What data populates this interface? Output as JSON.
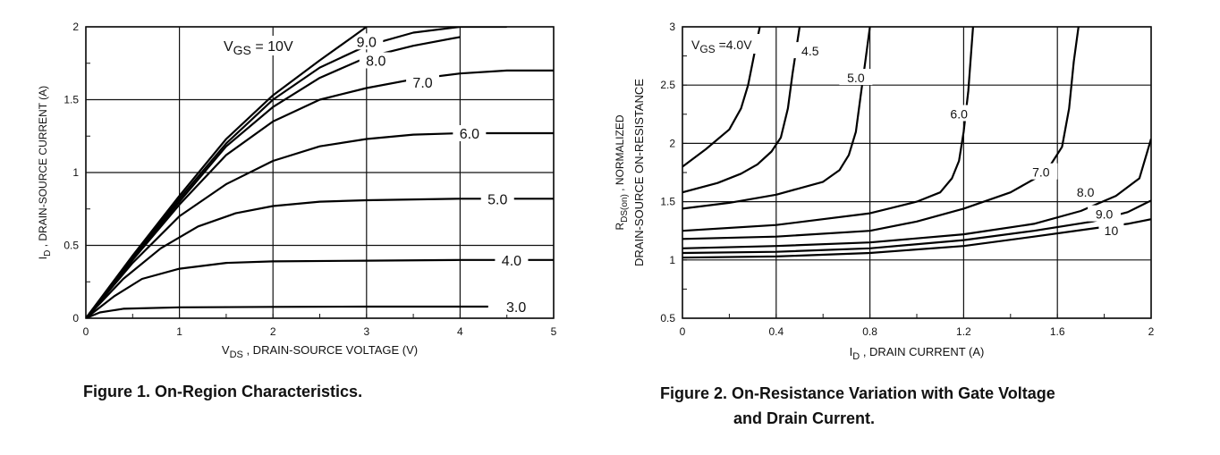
{
  "figures": [
    {
      "caption": "Figure 1. On-Region Characteristics.",
      "chart_data": {
        "type": "line",
        "title": "",
        "xlabel_main": "V",
        "xlabel_sub": "DS",
        "xlabel_rest": " , DRAIN-SOURCE VOLTAGE (V)",
        "ylabel_main": "I",
        "ylabel_sub": "D",
        "ylabel_rest": " , DRAIN-SOURCE CURRENT (A)",
        "xlim": [
          0,
          5
        ],
        "ylim": [
          0,
          2
        ],
        "x_ticks": [
          0,
          1,
          2,
          3,
          4,
          5
        ],
        "y_ticks": [
          0,
          0.5,
          1,
          1.5,
          2
        ],
        "x_tick_labels": [
          "0",
          "1",
          "2",
          "3",
          "4",
          "5"
        ],
        "y_tick_labels": [
          "0",
          "0.5",
          "1",
          "1.5",
          "2"
        ],
        "grid": true,
        "legend_header": {
          "main": "V",
          "sub": "GS",
          "rest": " = 10V"
        },
        "series": [
          {
            "label": "3.0",
            "points": [
              [
                0,
                0
              ],
              [
                0.15,
                0.04
              ],
              [
                0.4,
                0.065
              ],
              [
                1,
                0.075
              ],
              [
                2,
                0.078
              ],
              [
                3,
                0.08
              ],
              [
                4.3,
                0.08
              ]
            ],
            "label_pos": [
              4.6,
              0.08
            ]
          },
          {
            "label": "4.0",
            "points": [
              [
                0,
                0
              ],
              [
                0.3,
                0.15
              ],
              [
                0.6,
                0.27
              ],
              [
                1,
                0.34
              ],
              [
                1.5,
                0.38
              ],
              [
                2,
                0.39
              ],
              [
                3,
                0.395
              ],
              [
                4,
                0.4
              ],
              [
                5,
                0.4
              ]
            ],
            "label_pos": [
              4.55,
              0.4
            ]
          },
          {
            "label": "5.0",
            "points": [
              [
                0,
                0
              ],
              [
                0.4,
                0.27
              ],
              [
                0.8,
                0.48
              ],
              [
                1.2,
                0.63
              ],
              [
                1.6,
                0.72
              ],
              [
                2,
                0.77
              ],
              [
                2.5,
                0.8
              ],
              [
                3,
                0.81
              ],
              [
                4,
                0.82
              ],
              [
                5,
                0.82
              ]
            ],
            "label_pos": [
              4.4,
              0.82
            ]
          },
          {
            "label": "6.0",
            "points": [
              [
                0,
                0
              ],
              [
                0.5,
                0.38
              ],
              [
                1,
                0.7
              ],
              [
                1.5,
                0.92
              ],
              [
                2,
                1.08
              ],
              [
                2.5,
                1.18
              ],
              [
                3,
                1.23
              ],
              [
                3.5,
                1.26
              ],
              [
                4,
                1.27
              ],
              [
                5,
                1.27
              ]
            ],
            "label_pos": [
              4.1,
              1.27
            ]
          },
          {
            "label": "7.0",
            "points": [
              [
                0,
                0
              ],
              [
                0.5,
                0.4
              ],
              [
                1,
                0.78
              ],
              [
                1.5,
                1.12
              ],
              [
                2,
                1.35
              ],
              [
                2.5,
                1.5
              ],
              [
                3,
                1.58
              ],
              [
                3.5,
                1.64
              ],
              [
                4,
                1.68
              ],
              [
                4.5,
                1.7
              ],
              [
                5,
                1.7
              ]
            ],
            "label_pos": [
              3.6,
              1.62
            ]
          },
          {
            "label": "8.0",
            "points": [
              [
                0,
                0
              ],
              [
                0.5,
                0.41
              ],
              [
                1,
                0.8
              ],
              [
                1.5,
                1.18
              ],
              [
                2,
                1.45
              ],
              [
                2.5,
                1.65
              ],
              [
                3,
                1.79
              ],
              [
                3.5,
                1.87
              ],
              [
                4,
                1.93
              ]
            ],
            "label_pos": [
              3.1,
              1.77
            ]
          },
          {
            "label": "9.0",
            "points": [
              [
                0,
                0
              ],
              [
                0.5,
                0.42
              ],
              [
                1,
                0.82
              ],
              [
                1.5,
                1.2
              ],
              [
                2,
                1.5
              ],
              [
                2.5,
                1.72
              ],
              [
                3,
                1.87
              ],
              [
                3.5,
                1.96
              ],
              [
                4,
                2.0
              ],
              [
                4.5,
                2.0
              ]
            ],
            "label_pos": [
              3.0,
              1.9
            ]
          },
          {
            "label": "",
            "points": [
              [
                0,
                0
              ],
              [
                0.5,
                0.43
              ],
              [
                1,
                0.84
              ],
              [
                1.5,
                1.23
              ],
              [
                2,
                1.53
              ],
              [
                2.5,
                1.77
              ],
              [
                2.85,
                1.93
              ],
              [
                3.0,
                2.0
              ]
            ],
            "label_pos": null
          }
        ]
      }
    },
    {
      "caption_line1": "Figure 2. On-Resistance Variation with Gate Voltage",
      "caption_line2": "and Drain Current.",
      "chart_data": {
        "type": "line",
        "title": "",
        "xlabel_main": "I",
        "xlabel_sub": "D",
        "xlabel_rest": " , DRAIN CURRENT (A)",
        "ylabel_line1_main": "R",
        "ylabel_line1_sub": "DS(on)",
        "ylabel_line1_rest": " , NORMALIZED",
        "ylabel_line2": "DRAIN-SOURCE ON-RESISTANCE",
        "xlim": [
          0,
          2
        ],
        "ylim": [
          0.5,
          3
        ],
        "x_ticks": [
          0,
          0.4,
          0.8,
          1.2,
          1.6,
          2
        ],
        "y_ticks": [
          0.5,
          1,
          1.5,
          2,
          2.5,
          3
        ],
        "x_tick_labels": [
          "0",
          "0.4",
          "0.8",
          "1.2",
          "1.6",
          "2"
        ],
        "y_tick_labels": [
          "0.5",
          "1",
          "1.5",
          "2",
          "2.5",
          "3"
        ],
        "grid": true,
        "legend_header": {
          "main": "V",
          "sub": "GS",
          "rest": " =4.0V"
        },
        "series": [
          {
            "label": "",
            "points": [
              [
                0,
                1.8
              ],
              [
                0.1,
                1.95
              ],
              [
                0.2,
                2.12
              ],
              [
                0.25,
                2.3
              ],
              [
                0.28,
                2.5
              ],
              [
                0.3,
                2.7
              ],
              [
                0.32,
                2.9
              ],
              [
                0.33,
                3.0
              ]
            ],
            "label_pos": null
          },
          {
            "label": "4.5",
            "points": [
              [
                0,
                1.58
              ],
              [
                0.15,
                1.66
              ],
              [
                0.25,
                1.74
              ],
              [
                0.32,
                1.82
              ],
              [
                0.38,
                1.93
              ],
              [
                0.42,
                2.05
              ],
              [
                0.45,
                2.3
              ],
              [
                0.47,
                2.6
              ],
              [
                0.5,
                3.0
              ]
            ],
            "label_pos": [
              0.545,
              2.8
            ]
          },
          {
            "label": "5.0",
            "points": [
              [
                0,
                1.44
              ],
              [
                0.2,
                1.49
              ],
              [
                0.4,
                1.56
              ],
              [
                0.6,
                1.67
              ],
              [
                0.67,
                1.77
              ],
              [
                0.71,
                1.9
              ],
              [
                0.74,
                2.1
              ],
              [
                0.76,
                2.4
              ],
              [
                0.78,
                2.7
              ],
              [
                0.8,
                3.0
              ]
            ],
            "label_pos": [
              0.74,
              2.57
            ]
          },
          {
            "label": "6.0",
            "points": [
              [
                0,
                1.25
              ],
              [
                0.4,
                1.3
              ],
              [
                0.8,
                1.4
              ],
              [
                1.0,
                1.5
              ],
              [
                1.1,
                1.58
              ],
              [
                1.15,
                1.7
              ],
              [
                1.18,
                1.85
              ],
              [
                1.2,
                2.1
              ],
              [
                1.22,
                2.45
              ],
              [
                1.24,
                3.0
              ]
            ],
            "label_pos": [
              1.18,
              2.26
            ]
          },
          {
            "label": "7.0",
            "points": [
              [
                0,
                1.18
              ],
              [
                0.4,
                1.2
              ],
              [
                0.8,
                1.25
              ],
              [
                1.0,
                1.33
              ],
              [
                1.2,
                1.44
              ],
              [
                1.4,
                1.58
              ],
              [
                1.55,
                1.75
              ],
              [
                1.62,
                1.97
              ],
              [
                1.65,
                2.3
              ],
              [
                1.67,
                2.7
              ],
              [
                1.69,
                3.0
              ]
            ],
            "label_pos": [
              1.53,
              1.76
            ]
          },
          {
            "label": "8.0",
            "points": [
              [
                0,
                1.1
              ],
              [
                0.4,
                1.12
              ],
              [
                0.8,
                1.15
              ],
              [
                1.2,
                1.22
              ],
              [
                1.5,
                1.31
              ],
              [
                1.7,
                1.42
              ],
              [
                1.85,
                1.55
              ],
              [
                1.95,
                1.7
              ],
              [
                2.0,
                2.04
              ]
            ],
            "label_pos": [
              1.72,
              1.59
            ]
          },
          {
            "label": "9.0",
            "points": [
              [
                0,
                1.06
              ],
              [
                0.4,
                1.07
              ],
              [
                0.8,
                1.1
              ],
              [
                1.2,
                1.17
              ],
              [
                1.5,
                1.25
              ],
              [
                1.75,
                1.33
              ],
              [
                1.9,
                1.41
              ],
              [
                2.0,
                1.51
              ]
            ],
            "label_pos": [
              1.8,
              1.4
            ]
          },
          {
            "label": "10",
            "points": [
              [
                0,
                1.02
              ],
              [
                0.4,
                1.03
              ],
              [
                0.8,
                1.06
              ],
              [
                1.2,
                1.12
              ],
              [
                1.5,
                1.2
              ],
              [
                1.75,
                1.27
              ],
              [
                1.9,
                1.31
              ],
              [
                2.0,
                1.35
              ]
            ],
            "label_pos": [
              1.83,
              1.26
            ]
          }
        ]
      }
    }
  ]
}
